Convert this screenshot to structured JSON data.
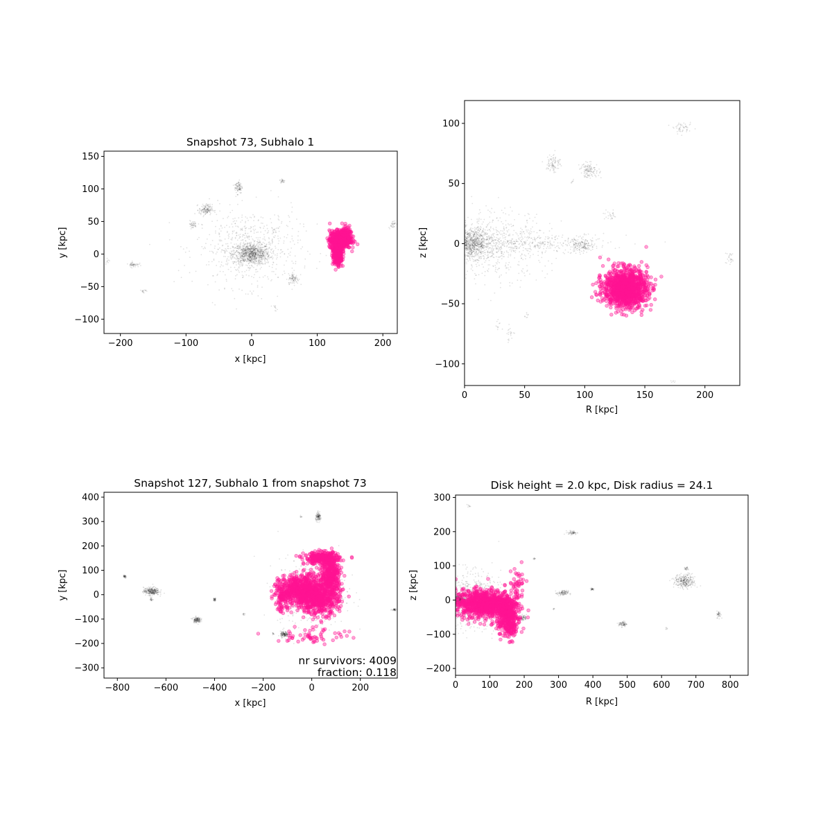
{
  "colors": {
    "member": "#ff1493",
    "host": "#000000",
    "axes": "#000000"
  },
  "chart_data": [
    {
      "id": "top-left",
      "type": "scatter",
      "title": "Snapshot 73, Subhalo 1",
      "xlabel": "x [kpc]",
      "ylabel": "y [kpc]",
      "xlim": [
        -225,
        222
      ],
      "ylim": [
        -122,
        158
      ],
      "xticks": [
        -200,
        -100,
        0,
        100,
        200
      ],
      "yticks": [
        -100,
        -50,
        0,
        50,
        100,
        150
      ],
      "annotations": [],
      "host_clumps": [
        {
          "x": 0,
          "y": 0,
          "sx": 14,
          "sy": 8,
          "n": 900
        },
        {
          "x": -5,
          "y": 10,
          "sx": 40,
          "sy": 30,
          "n": 600
        },
        {
          "x": -70,
          "y": 68,
          "sx": 5,
          "sy": 4,
          "n": 140
        },
        {
          "x": -20,
          "y": 103,
          "sx": 3,
          "sy": 5,
          "n": 90
        },
        {
          "x": 47,
          "y": 112,
          "sx": 2,
          "sy": 2,
          "n": 25
        },
        {
          "x": 64,
          "y": -38,
          "sx": 4,
          "sy": 4,
          "n": 80
        },
        {
          "x": -180,
          "y": -16,
          "sx": 4,
          "sy": 2,
          "n": 50
        },
        {
          "x": -90,
          "y": 45,
          "sx": 3,
          "sy": 3,
          "n": 40
        },
        {
          "x": 215,
          "y": 46,
          "sx": 3,
          "sy": 3,
          "n": 30
        },
        {
          "x": -165,
          "y": -57,
          "sx": 2,
          "sy": 2,
          "n": 15
        },
        {
          "x": -220,
          "y": -10,
          "sx": 2,
          "sy": 2,
          "n": 10
        },
        {
          "x": 35,
          "y": -83,
          "sx": 2,
          "sy": 2,
          "n": 10
        },
        {
          "x": 35,
          "y": 35,
          "sx": 2,
          "sy": 2,
          "n": 10
        }
      ],
      "member_clumps": [
        {
          "x": 135,
          "y": 22,
          "sx": 8,
          "sy": 7,
          "n": 500
        },
        {
          "x": 130,
          "y": 5,
          "sx": 4,
          "sy": 8,
          "n": 200
        },
        {
          "x": 132,
          "y": -10,
          "sx": 3,
          "sy": 6,
          "n": 80
        },
        {
          "x": 145,
          "y": 30,
          "sx": 5,
          "sy": 5,
          "n": 100
        }
      ]
    },
    {
      "id": "top-right",
      "type": "scatter",
      "title": "",
      "xlabel": "R [kpc]",
      "ylabel": "z [kpc]",
      "xlim": [
        0,
        229
      ],
      "ylim": [
        -118,
        119
      ],
      "xticks": [
        0,
        50,
        100,
        150,
        200
      ],
      "yticks": [
        -100,
        -50,
        0,
        50,
        100
      ],
      "annotations": [],
      "host_clumps": [
        {
          "x": 5,
          "y": 0,
          "sx": 8,
          "sy": 6,
          "n": 900
        },
        {
          "x": 20,
          "y": 0,
          "sx": 25,
          "sy": 14,
          "n": 700
        },
        {
          "x": 60,
          "y": 0,
          "sx": 30,
          "sy": 4,
          "n": 300
        },
        {
          "x": 97,
          "y": -2,
          "sx": 5,
          "sy": 3,
          "n": 150
        },
        {
          "x": 104,
          "y": 61,
          "sx": 4,
          "sy": 3,
          "n": 120
        },
        {
          "x": 74,
          "y": 67,
          "sx": 3,
          "sy": 4,
          "n": 90
        },
        {
          "x": 182,
          "y": 96,
          "sx": 4,
          "sy": 2,
          "n": 50
        },
        {
          "x": 121,
          "y": 23,
          "sx": 3,
          "sy": 2,
          "n": 25
        },
        {
          "x": 221,
          "y": -13,
          "sx": 2,
          "sy": 3,
          "n": 25
        },
        {
          "x": 38,
          "y": -75,
          "sx": 2,
          "sy": 3,
          "n": 20
        },
        {
          "x": 28,
          "y": -68,
          "sx": 2,
          "sy": 2,
          "n": 10
        },
        {
          "x": 51,
          "y": -59,
          "sx": 1,
          "sy": 2,
          "n": 8
        },
        {
          "x": 90,
          "y": 52,
          "sx": 1,
          "sy": 1,
          "n": 6
        },
        {
          "x": 173,
          "y": -115,
          "sx": 2,
          "sy": 1,
          "n": 6
        }
      ],
      "member_clumps": [
        {
          "x": 134,
          "y": -37,
          "sx": 9,
          "sy": 8,
          "n": 1200
        }
      ]
    },
    {
      "id": "bottom-left",
      "type": "scatter",
      "title": "Snapshot 127, Subhalo 1 from snapshot 73",
      "xlabel": "x [kpc]",
      "ylabel": "y [kpc]",
      "xlim": [
        -855,
        352
      ],
      "ylim": [
        -342,
        420
      ],
      "xticks": [
        -800,
        -600,
        -400,
        -200,
        0,
        200
      ],
      "yticks": [
        -300,
        -200,
        -100,
        0,
        100,
        200,
        300,
        400
      ],
      "annotations": [
        "nr survivors: 4009",
        "fraction: 0.118"
      ],
      "host_clumps": [
        {
          "x": 0,
          "y": 0,
          "sx": 15,
          "sy": 15,
          "n": 400
        },
        {
          "x": 0,
          "y": 10,
          "sx": 70,
          "sy": 70,
          "n": 500
        },
        {
          "x": -660,
          "y": 14,
          "sx": 16,
          "sy": 8,
          "n": 300
        },
        {
          "x": -660,
          "y": -20,
          "sx": 3,
          "sy": 3,
          "n": 20
        },
        {
          "x": -473,
          "y": -103,
          "sx": 8,
          "sy": 6,
          "n": 150
        },
        {
          "x": -113,
          "y": -163,
          "sx": 8,
          "sy": 6,
          "n": 150
        },
        {
          "x": 28,
          "y": 318,
          "sx": 6,
          "sy": 8,
          "n": 120
        },
        {
          "x": -770,
          "y": 74,
          "sx": 3,
          "sy": 4,
          "n": 40
        },
        {
          "x": -400,
          "y": -20,
          "sx": 3,
          "sy": 3,
          "n": 40
        },
        {
          "x": 340,
          "y": -60,
          "sx": 5,
          "sy": 3,
          "n": 40
        },
        {
          "x": -280,
          "y": -80,
          "sx": 2,
          "sy": 2,
          "n": 10
        },
        {
          "x": -45,
          "y": 320,
          "sx": 2,
          "sy": 2,
          "n": 8
        },
        {
          "x": -160,
          "y": -160,
          "sx": 2,
          "sy": 2,
          "n": 10
        }
      ],
      "member_clumps": [
        {
          "x": -40,
          "y": 20,
          "sx": 45,
          "sy": 30,
          "n": 700
        },
        {
          "x": 30,
          "y": -20,
          "sx": 40,
          "sy": 30,
          "n": 500
        },
        {
          "x": 80,
          "y": 80,
          "sx": 20,
          "sy": 35,
          "n": 400
        },
        {
          "x": 40,
          "y": 150,
          "sx": 35,
          "sy": 12,
          "n": 300
        },
        {
          "x": -120,
          "y": -10,
          "sx": 15,
          "sy": 30,
          "n": 100
        },
        {
          "x": 10,
          "y": -165,
          "sx": 75,
          "sy": 20,
          "n": 60
        }
      ]
    },
    {
      "id": "bottom-right",
      "type": "scatter",
      "title": "Disk height = 2.0 kpc, Disk radius = 24.1",
      "xlabel": "R [kpc]",
      "ylabel": "z [kpc]",
      "xlim": [
        0,
        852
      ],
      "ylim": [
        -220,
        307
      ],
      "xticks": [
        0,
        100,
        200,
        300,
        400,
        500,
        600,
        700,
        800
      ],
      "yticks": [
        -200,
        -100,
        0,
        100,
        200,
        300
      ],
      "annotations": [],
      "host_clumps": [
        {
          "x": 10,
          "y": 0,
          "sx": 10,
          "sy": 8,
          "n": 500
        },
        {
          "x": 40,
          "y": 0,
          "sx": 45,
          "sy": 40,
          "n": 700
        },
        {
          "x": 195,
          "y": -52,
          "sx": 6,
          "sy": 4,
          "n": 80
        },
        {
          "x": 668,
          "y": 55,
          "sx": 15,
          "sy": 10,
          "n": 300
        },
        {
          "x": 672,
          "y": 92,
          "sx": 3,
          "sy": 3,
          "n": 25
        },
        {
          "x": 312,
          "y": 20,
          "sx": 8,
          "sy": 4,
          "n": 100
        },
        {
          "x": 340,
          "y": 197,
          "sx": 7,
          "sy": 3,
          "n": 60
        },
        {
          "x": 487,
          "y": -70,
          "sx": 6,
          "sy": 4,
          "n": 80
        },
        {
          "x": 398,
          "y": 32,
          "sx": 3,
          "sy": 2,
          "n": 30
        },
        {
          "x": 767,
          "y": -42,
          "sx": 3,
          "sy": 5,
          "n": 40
        },
        {
          "x": 230,
          "y": 120,
          "sx": 2,
          "sy": 2,
          "n": 10
        },
        {
          "x": 40,
          "y": 275,
          "sx": 2,
          "sy": 2,
          "n": 8
        },
        {
          "x": 615,
          "y": -82,
          "sx": 2,
          "sy": 2,
          "n": 6
        },
        {
          "x": 285,
          "y": -25,
          "sx": 2,
          "sy": 2,
          "n": 6
        }
      ],
      "member_clumps": [
        {
          "x": 80,
          "y": -10,
          "sx": 40,
          "sy": 20,
          "n": 900
        },
        {
          "x": 150,
          "y": -40,
          "sx": 15,
          "sy": 25,
          "n": 400
        },
        {
          "x": 160,
          "y": -80,
          "sx": 12,
          "sy": 18,
          "n": 100
        },
        {
          "x": 180,
          "y": 40,
          "sx": 12,
          "sy": 30,
          "n": 50
        }
      ]
    }
  ]
}
